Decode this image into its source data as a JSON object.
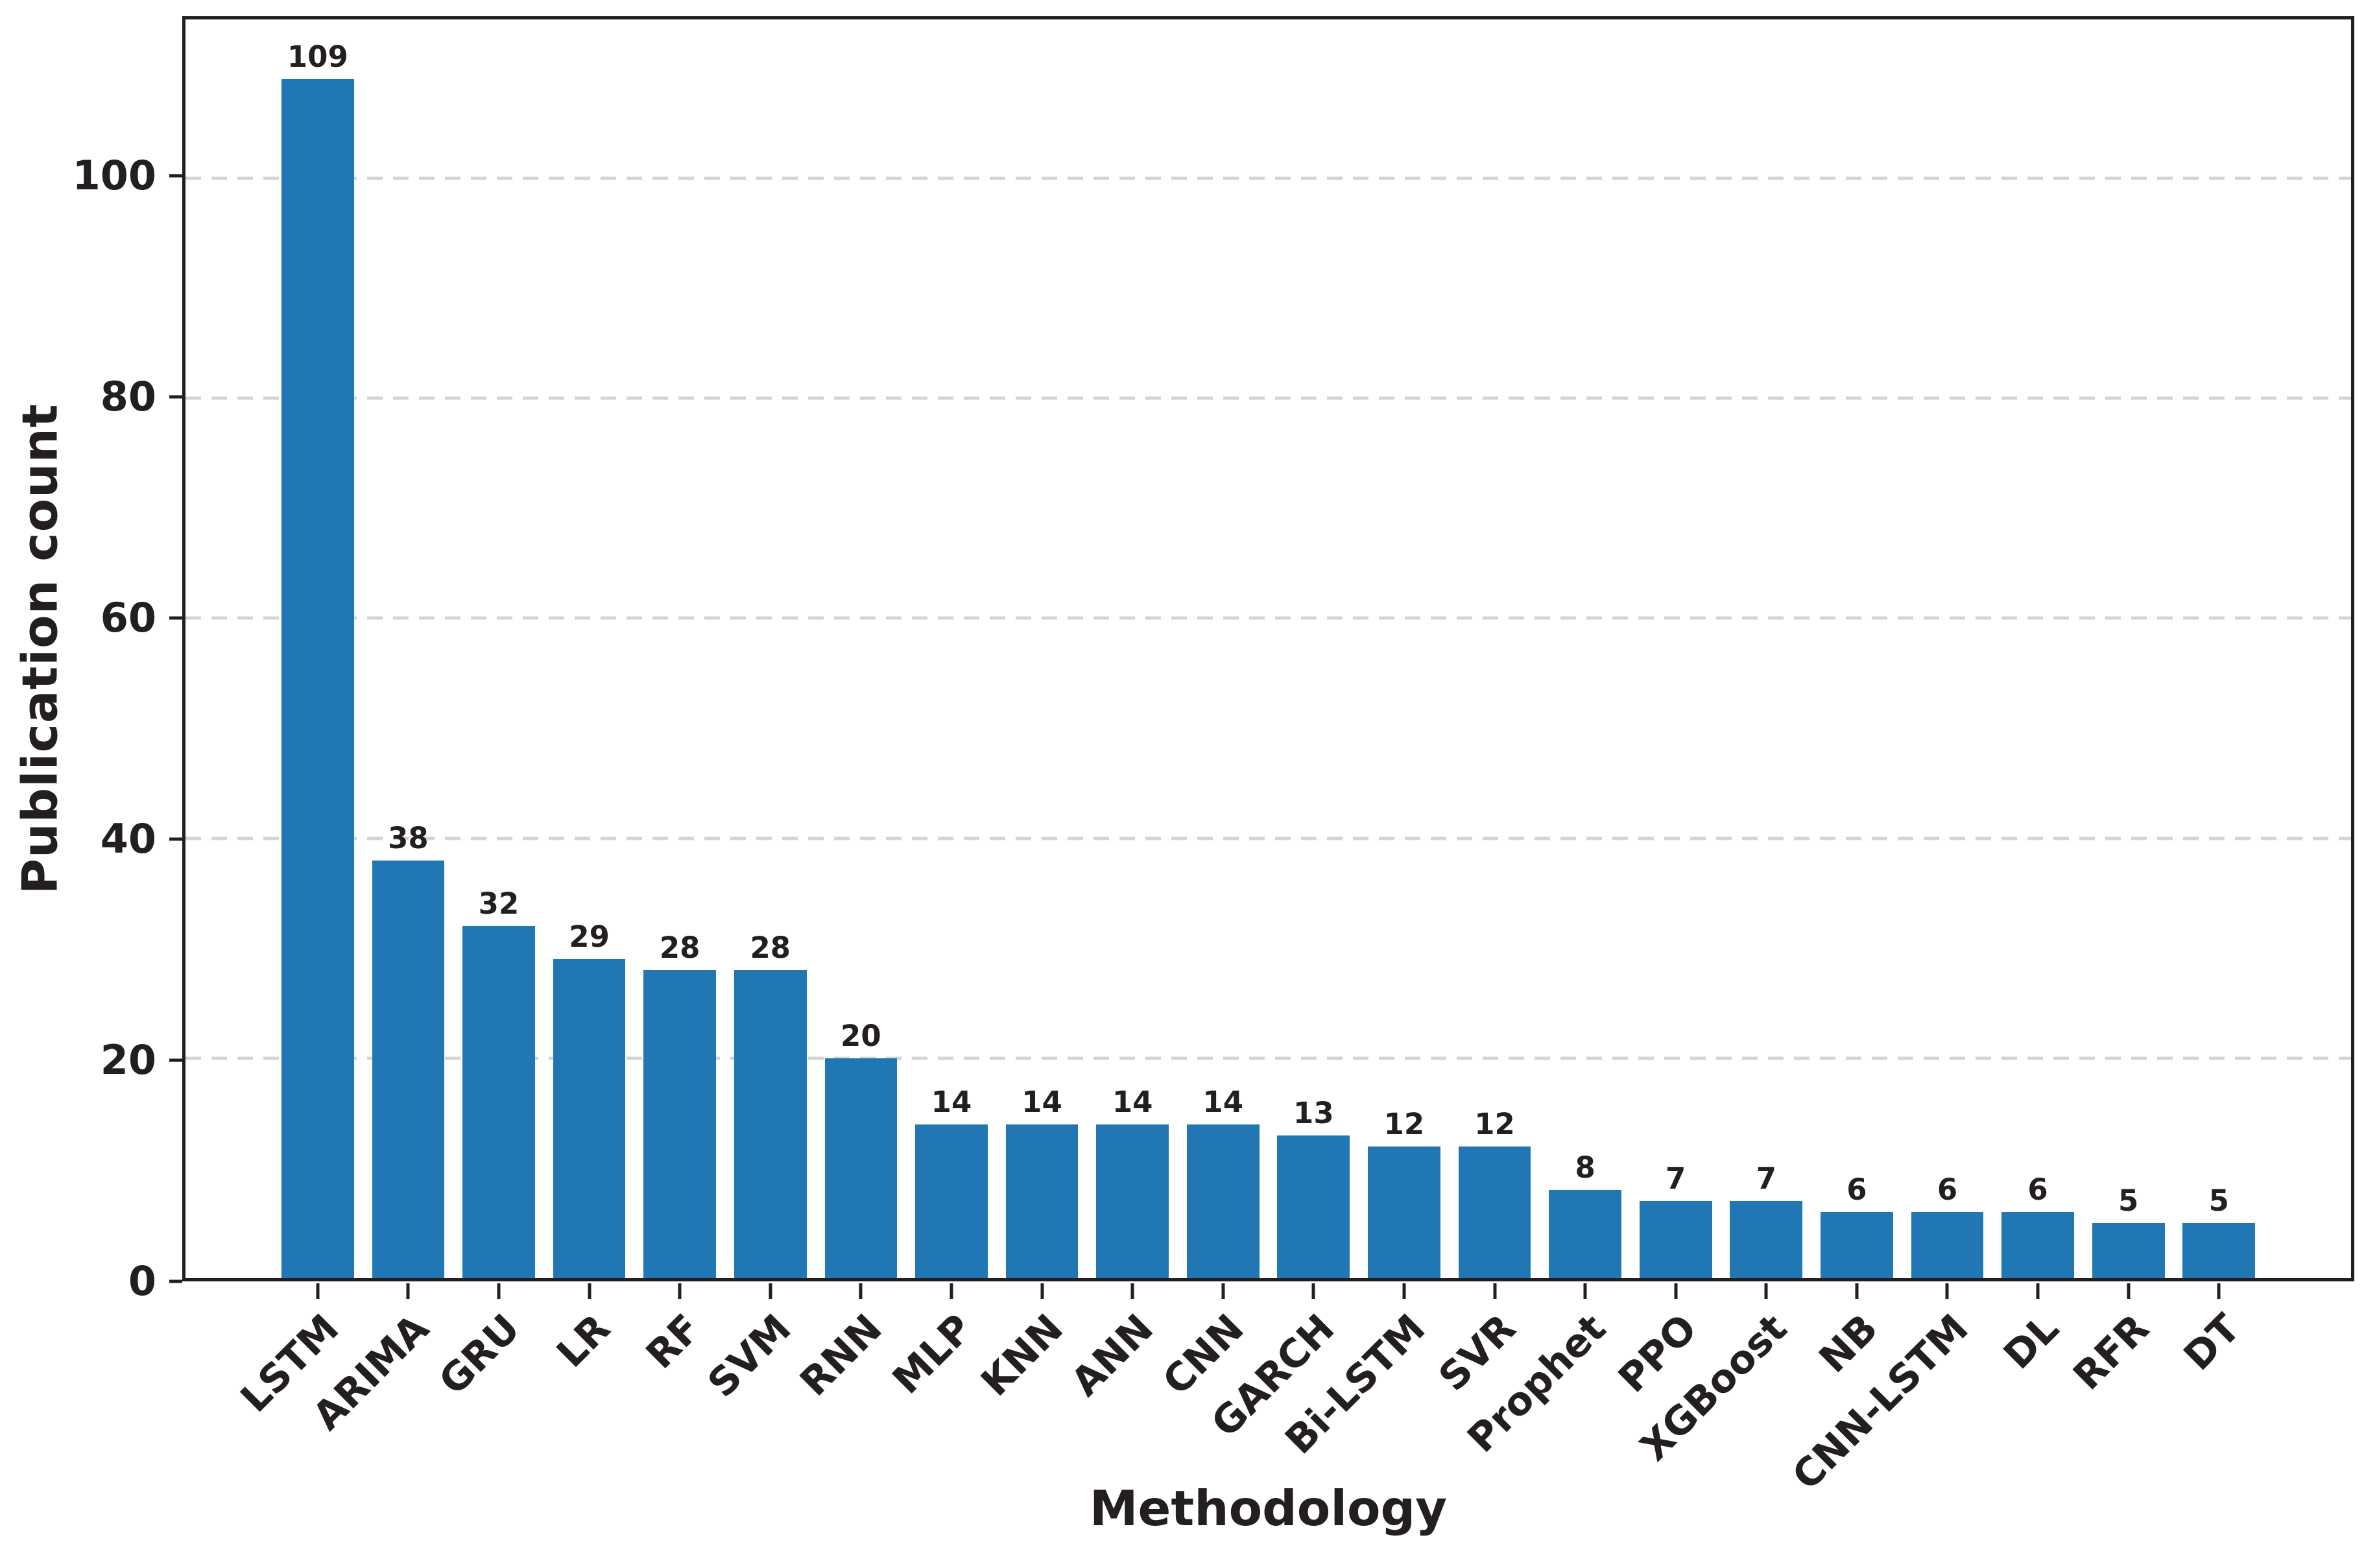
{
  "chart_data": {
    "type": "bar",
    "title": "",
    "xlabel": "Methodology",
    "ylabel": "Publication count",
    "categories": [
      "LSTM",
      "ARIMA",
      "GRU",
      "LR",
      "RF",
      "SVM",
      "RNN",
      "MLP",
      "KNN",
      "ANN",
      "CNN",
      "GARCH",
      "Bi-LSTM",
      "SVR",
      "Prophet",
      "PPO",
      "XGBoost",
      "NB",
      "CNN-LSTM",
      "DL",
      "RFR",
      "DT"
    ],
    "values": [
      109,
      38,
      32,
      29,
      28,
      28,
      20,
      14,
      14,
      14,
      14,
      13,
      12,
      12,
      8,
      7,
      7,
      6,
      6,
      6,
      5,
      5
    ],
    "ylim": [
      0,
      114.45
    ],
    "yticks": [
      0,
      20,
      40,
      60,
      80,
      100
    ],
    "gridlines": [
      20,
      40,
      60,
      80,
      100
    ],
    "grid_style": "dashed",
    "legend": "none",
    "bar_labels_shown": true,
    "x_tick_rotation_deg": 45,
    "colors": {
      "bar": "#2077b4",
      "text": "#231f20",
      "axis": "#231f20",
      "grid": "#d4d4d4",
      "background": "#ffffff"
    }
  }
}
